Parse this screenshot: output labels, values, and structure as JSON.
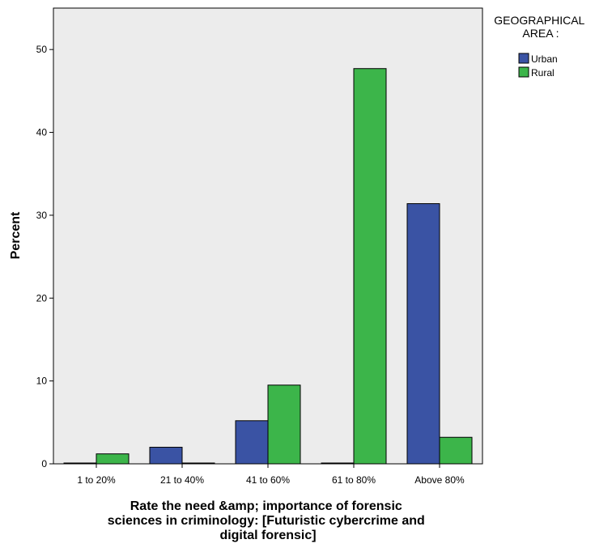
{
  "chart_data": {
    "type": "bar",
    "categories": [
      "1 to 20%",
      "21 to 40%",
      "41 to 60%",
      "61 to 80%",
      "Above 80%"
    ],
    "series": [
      {
        "name": "Urban",
        "color": "#3a53a4",
        "values": [
          0,
          2.0,
          5.2,
          0,
          31.4
        ]
      },
      {
        "name": "Rural",
        "color": "#3cb54a",
        "values": [
          1.2,
          0,
          9.5,
          47.7,
          3.2
        ]
      }
    ],
    "xlabel": [
      "Rate the need &amp; importance of forensic",
      "sciences in criminology:  [Futuristic  cybercrime and",
      "digital forensic]"
    ],
    "ylabel": "Percent",
    "ylim": [
      0,
      55
    ],
    "yticks": [
      "0",
      "10",
      "20",
      "30",
      "40",
      "50"
    ],
    "legend": {
      "title": [
        "GEOGRAPHICAL",
        "AREA :"
      ],
      "placement": "top-right"
    },
    "plot_background": "#ececec"
  }
}
